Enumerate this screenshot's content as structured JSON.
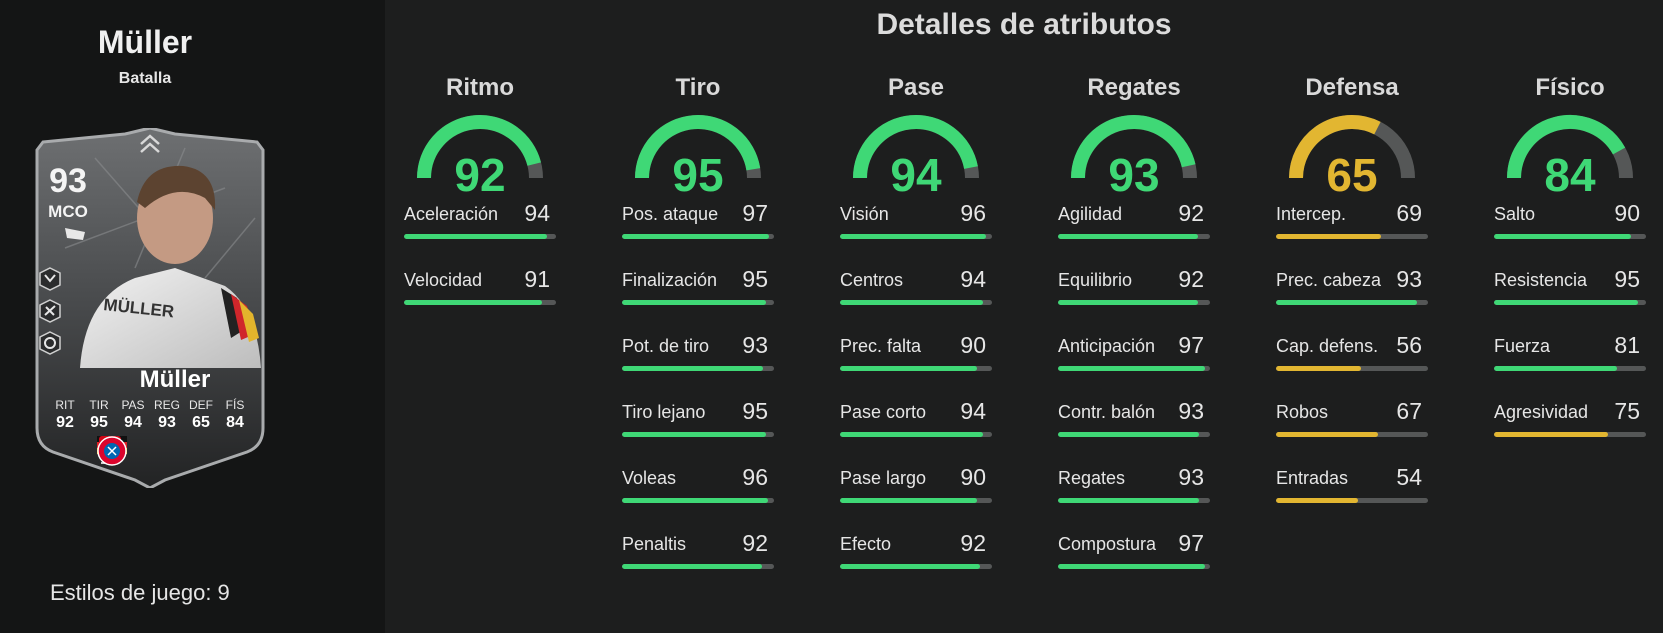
{
  "player": {
    "name": "Müller",
    "version": "Batalla",
    "rating": "93",
    "position": "MCO",
    "card_name": "Müller",
    "card_stats": [
      {
        "label": "RIT",
        "value": "92"
      },
      {
        "label": "TIR",
        "value": "95"
      },
      {
        "label": "PAS",
        "value": "94"
      },
      {
        "label": "REG",
        "value": "93"
      },
      {
        "label": "DEF",
        "value": "65"
      },
      {
        "label": "FÍS",
        "value": "84"
      }
    ],
    "playstyles_label": "Estilos de juego: 9"
  },
  "page_title": "Detalles de atributos",
  "colors": {
    "high": "#3fd876",
    "mid": "#e2b631",
    "track": "#555757"
  },
  "categories": [
    {
      "title": "Ritmo",
      "value": 92,
      "attributes": [
        {
          "label": "Aceleración",
          "value": 94
        },
        {
          "label": "Velocidad",
          "value": 91
        }
      ]
    },
    {
      "title": "Tiro",
      "value": 95,
      "attributes": [
        {
          "label": "Pos. ataque",
          "value": 97
        },
        {
          "label": "Finalización",
          "value": 95
        },
        {
          "label": "Pot. de tiro",
          "value": 93
        },
        {
          "label": "Tiro lejano",
          "value": 95
        },
        {
          "label": "Voleas",
          "value": 96
        },
        {
          "label": "Penaltis",
          "value": 92
        }
      ]
    },
    {
      "title": "Pase",
      "value": 94,
      "attributes": [
        {
          "label": "Visión",
          "value": 96
        },
        {
          "label": "Centros",
          "value": 94
        },
        {
          "label": "Prec. falta",
          "value": 90
        },
        {
          "label": "Pase corto",
          "value": 94
        },
        {
          "label": "Pase largo",
          "value": 90
        },
        {
          "label": "Efecto",
          "value": 92
        }
      ]
    },
    {
      "title": "Regates",
      "value": 93,
      "attributes": [
        {
          "label": "Agilidad",
          "value": 92
        },
        {
          "label": "Equilibrio",
          "value": 92
        },
        {
          "label": "Anticipación",
          "value": 97
        },
        {
          "label": "Contr. balón",
          "value": 93
        },
        {
          "label": "Regates",
          "value": 93
        },
        {
          "label": "Compostura",
          "value": 97
        }
      ]
    },
    {
      "title": "Defensa",
      "value": 65,
      "attributes": [
        {
          "label": "Intercep.",
          "value": 69
        },
        {
          "label": "Prec. cabeza",
          "value": 93
        },
        {
          "label": "Cap. defens.",
          "value": 56
        },
        {
          "label": "Robos",
          "value": 67
        },
        {
          "label": "Entradas",
          "value": 54
        }
      ]
    },
    {
      "title": "Físico",
      "value": 84,
      "attributes": [
        {
          "label": "Salto",
          "value": 90
        },
        {
          "label": "Resistencia",
          "value": 95
        },
        {
          "label": "Fuerza",
          "value": 81
        },
        {
          "label": "Agresividad",
          "value": 75
        }
      ]
    }
  ]
}
